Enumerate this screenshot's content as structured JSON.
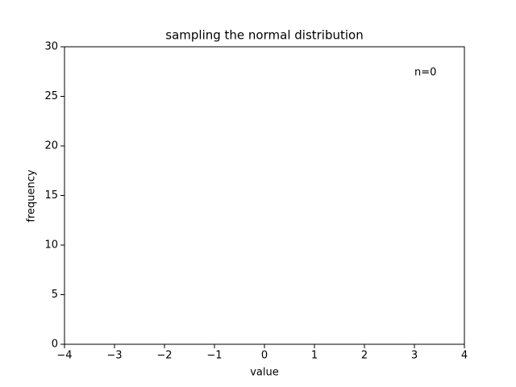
{
  "chart_data": {
    "type": "histogram",
    "title": "sampling the normal distribution",
    "x_label": "value",
    "y_label": "frequency",
    "annotation": "n=0",
    "xlim": [
      -4,
      4
    ],
    "xticks": [
      {
        "value": -4,
        "label": "−4"
      },
      {
        "value": -3,
        "label": "−3"
      },
      {
        "value": -2,
        "label": "−2"
      },
      {
        "value": -1,
        "label": "−1"
      },
      0,
      1,
      2,
      3,
      4
    ],
    "ylim": [
      0,
      30
    ],
    "yticks": [
      0,
      5,
      10,
      15,
      20,
      25,
      30
    ],
    "grid": false
  }
}
